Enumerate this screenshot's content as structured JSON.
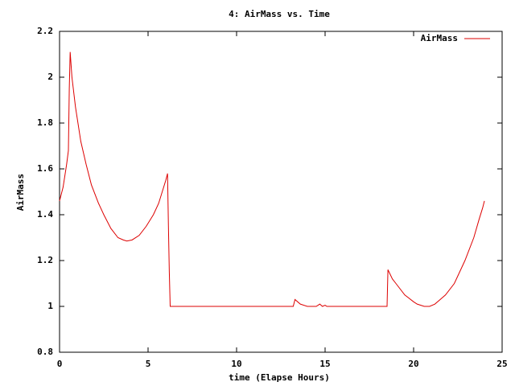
{
  "chart_data": {
    "type": "line",
    "title": "4: AirMass vs. Time",
    "x_label": "time (Elapse Hours)",
    "y_label": "AirMass",
    "x": [
      0,
      0.2,
      0.4,
      0.5,
      0.55,
      0.6,
      0.7,
      0.9,
      1.2,
      1.5,
      1.8,
      2.2,
      2.5,
      2.9,
      3.3,
      3.6,
      3.8,
      4.1,
      4.5,
      4.9,
      5.3,
      5.6,
      5.8,
      6.0,
      6.1,
      6.15,
      6.2,
      6.25,
      8,
      10,
      12,
      13.2,
      13.3,
      13.6,
      14.0,
      14.5,
      14.7,
      14.85,
      15.0,
      15.1,
      15.3,
      17,
      18.5,
      18.55,
      18.8,
      19.0,
      19.5,
      20.0,
      20.2,
      20.6,
      20.9,
      21.2,
      21.5,
      21.8,
      22.3,
      22.9,
      23.4,
      23.7,
      23.9,
      24
    ],
    "series": [
      {
        "name": "AirMass",
        "color": "#dd0000",
        "values": [
          1.46,
          1.52,
          1.62,
          1.68,
          1.95,
          2.11,
          2.0,
          1.87,
          1.72,
          1.62,
          1.53,
          1.45,
          1.4,
          1.34,
          1.3,
          1.29,
          1.285,
          1.29,
          1.31,
          1.35,
          1.4,
          1.45,
          1.5,
          1.55,
          1.58,
          1.35,
          1.15,
          1.0,
          1.0,
          1.0,
          1.0,
          1.0,
          1.03,
          1.01,
          1.0,
          1.0,
          1.01,
          1.0,
          1.005,
          1.0,
          1.0,
          1.0,
          1.0,
          1.16,
          1.12,
          1.1,
          1.05,
          1.02,
          1.01,
          1.0,
          1.0,
          1.01,
          1.03,
          1.05,
          1.1,
          1.2,
          1.3,
          1.38,
          1.43,
          1.46
        ]
      }
    ],
    "xlim": [
      0,
      25
    ],
    "xticks": [
      0,
      5,
      10,
      15,
      20,
      25
    ],
    "ylim": [
      0.8,
      2.2
    ],
    "yticks": [
      0.8,
      1,
      1.2,
      1.4,
      1.6,
      1.8,
      2,
      2.2
    ],
    "legend": "top-right"
  }
}
